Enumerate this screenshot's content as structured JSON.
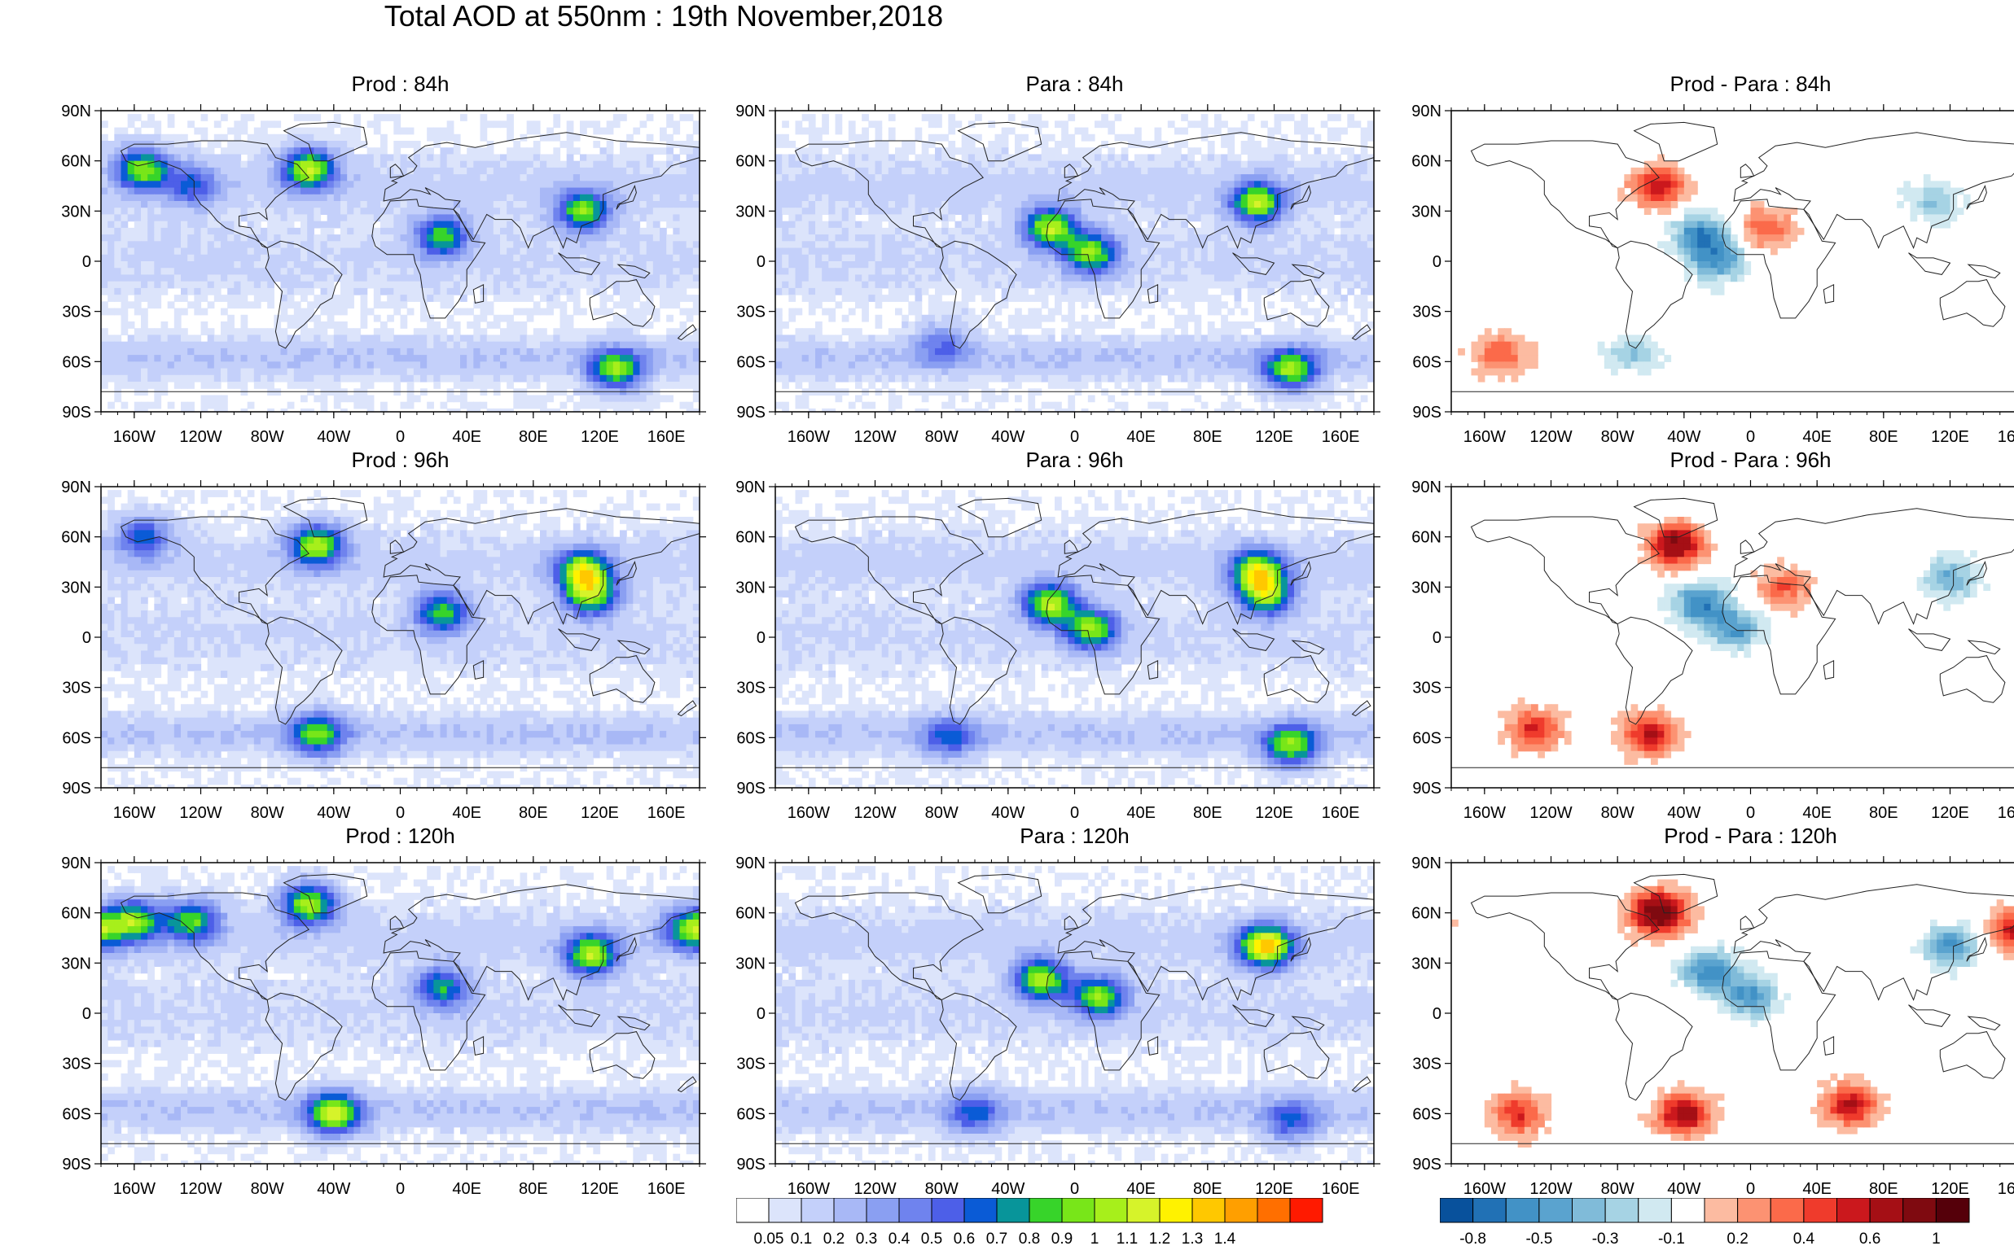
{
  "title": "Total AOD at 550nm : 19th November,2018",
  "panels": [
    {
      "title": "Prod : 84h",
      "kind": "aod",
      "seed": 11,
      "hotspots": [
        [
          -155,
          55,
          0.9
        ],
        [
          -55,
          55,
          1.0
        ],
        [
          25,
          15,
          0.8
        ],
        [
          110,
          30,
          0.9
        ],
        [
          -125,
          45,
          0.5
        ],
        [
          130,
          -65,
          0.9
        ]
      ]
    },
    {
      "title": "Para : 84h",
      "kind": "aod",
      "seed": 23,
      "hotspots": [
        [
          -15,
          20,
          1.0
        ],
        [
          10,
          5,
          0.9
        ],
        [
          110,
          35,
          1.0
        ],
        [
          130,
          -65,
          0.9
        ],
        [
          -80,
          -50,
          0.4
        ]
      ]
    },
    {
      "title": "Prod - Para : 84h",
      "kind": "diff",
      "seed": 37,
      "hotspots": [
        [
          -55,
          45,
          0.6
        ],
        [
          -30,
          15,
          -0.6
        ],
        [
          -20,
          0,
          -0.5
        ],
        [
          10,
          20,
          0.4
        ],
        [
          110,
          35,
          -0.3
        ],
        [
          -150,
          -55,
          0.4
        ],
        [
          -70,
          -55,
          -0.3
        ]
      ]
    },
    {
      "title": "Prod : 96h",
      "kind": "aod",
      "seed": 41,
      "hotspots": [
        [
          -50,
          55,
          1.0
        ],
        [
          110,
          40,
          1.0
        ],
        [
          115,
          25,
          0.9
        ],
        [
          25,
          15,
          0.8
        ],
        [
          -155,
          60,
          0.6
        ],
        [
          -50,
          -58,
          0.8
        ]
      ]
    },
    {
      "title": "Para : 96h",
      "kind": "aod",
      "seed": 53,
      "hotspots": [
        [
          -15,
          20,
          1.0
        ],
        [
          10,
          5,
          0.9
        ],
        [
          110,
          40,
          1.0
        ],
        [
          115,
          25,
          0.9
        ],
        [
          130,
          -65,
          0.9
        ],
        [
          -75,
          -60,
          0.5
        ]
      ]
    },
    {
      "title": "Prod - Para : 96h",
      "kind": "diff",
      "seed": 67,
      "hotspots": [
        [
          -45,
          55,
          0.8
        ],
        [
          -30,
          20,
          -0.6
        ],
        [
          -10,
          5,
          -0.5
        ],
        [
          20,
          30,
          0.4
        ],
        [
          120,
          35,
          -0.4
        ],
        [
          -130,
          -55,
          0.5
        ],
        [
          -60,
          -58,
          0.6
        ]
      ]
    },
    {
      "title": "Prod : 120h",
      "kind": "aod",
      "seed": 71,
      "hotspots": [
        [
          -55,
          65,
          1.0
        ],
        [
          -160,
          55,
          0.9
        ],
        [
          -125,
          55,
          0.8
        ],
        [
          115,
          35,
          1.0
        ],
        [
          175,
          50,
          0.9
        ],
        [
          -40,
          -60,
          1.0
        ],
        [
          25,
          15,
          0.7
        ]
      ]
    },
    {
      "title": "Para : 120h",
      "kind": "aod",
      "seed": 83,
      "hotspots": [
        [
          -20,
          20,
          1.0
        ],
        [
          15,
          10,
          0.9
        ],
        [
          115,
          40,
          1.3
        ],
        [
          130,
          -65,
          0.5
        ],
        [
          -60,
          -60,
          0.5
        ]
      ]
    },
    {
      "title": "Prod - Para : 120h",
      "kind": "diff",
      "seed": 97,
      "hotspots": [
        [
          -55,
          60,
          1.0
        ],
        [
          -25,
          25,
          -0.6
        ],
        [
          0,
          10,
          -0.5
        ],
        [
          120,
          40,
          -0.5
        ],
        [
          160,
          50,
          0.6
        ],
        [
          -40,
          -60,
          0.7
        ],
        [
          -140,
          -60,
          0.5
        ],
        [
          60,
          -55,
          0.6
        ]
      ]
    }
  ],
  "lat_ticks": [
    "90N",
    "60N",
    "30N",
    "0",
    "30S",
    "60S",
    "90S"
  ],
  "lon_ticks": [
    "160W",
    "120W",
    "80W",
    "40W",
    "0",
    "40E",
    "80E",
    "120E",
    "160E"
  ],
  "colorbar_aod": {
    "colors": [
      "#ffffff",
      "#dce4fb",
      "#c4d0fa",
      "#a8b8f6",
      "#8a9ff2",
      "#6f83ee",
      "#4d5fe8",
      "#0a5bd6",
      "#08959a",
      "#37d42a",
      "#78e619",
      "#a7ef1b",
      "#d6f32a",
      "#fff200",
      "#ffc800",
      "#ff9f00",
      "#ff6f00",
      "#ff1a00"
    ],
    "labels": [
      "0.05",
      "0.1",
      "0.2",
      "0.3",
      "0.4",
      "0.5",
      "0.6",
      "0.7",
      "0.8",
      "0.9",
      "1",
      "1.1",
      "1.2",
      "1.3",
      "1.4"
    ]
  },
  "colorbar_diff": {
    "colors": [
      "#08519c",
      "#2171b5",
      "#4292c6",
      "#5aa3cf",
      "#80bbd9",
      "#a6d3e4",
      "#d1e9f1",
      "#ffffff",
      "#fcbba1",
      "#fc9272",
      "#fb6a4a",
      "#ef3b2c",
      "#cb181d",
      "#a50f15",
      "#7f0a10",
      "#55000a"
    ],
    "labels": [
      "-0.8",
      "-0.5",
      "-0.3",
      "-0.1",
      "0.2",
      "0.4",
      "0.6",
      "1"
    ]
  }
}
